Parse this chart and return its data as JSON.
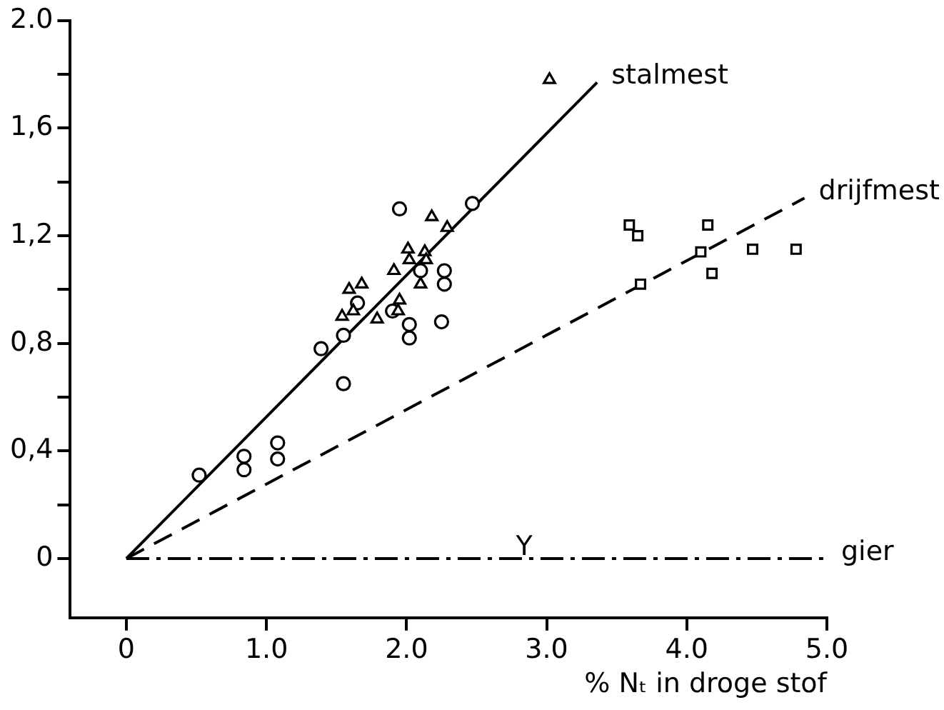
{
  "chart_data": {
    "type": "scatter",
    "xlabel": "% Nₜ in droge stof",
    "xlim": [
      -0.4,
      5.0
    ],
    "ylim": [
      -0.22,
      2.0
    ],
    "xticks": [
      0,
      {
        "value": 1,
        "label": "1.0"
      },
      {
        "value": 2,
        "label": "2.0"
      },
      {
        "value": 3,
        "label": "3.0"
      },
      {
        "value": 4,
        "label": "4.0"
      },
      {
        "value": 5,
        "label": "5.0"
      }
    ],
    "yticks": [
      0,
      {
        "value": 0.2,
        "label": null
      },
      {
        "value": 0.4,
        "label": "0,4"
      },
      {
        "value": 0.6,
        "label": null
      },
      {
        "value": 0.8,
        "label": "0,8"
      },
      {
        "value": 1.0,
        "label": null
      },
      {
        "value": 1.2,
        "label": "1,2"
      },
      {
        "value": 1.4,
        "label": null
      },
      {
        "value": 1.6,
        "label": "1,6"
      },
      {
        "value": 1.8,
        "label": null
      },
      {
        "value": 2.0,
        "label": "2.0"
      }
    ],
    "grid": false,
    "legend": false,
    "series": [
      {
        "marker": "circle",
        "color": "#000000",
        "x": [
          0.52,
          0.84,
          0.84,
          1.08,
          1.08,
          1.39,
          1.55,
          1.55
        ],
        "values": [
          0.31,
          0.38,
          0.33,
          0.43,
          0.37,
          0.78,
          0.83,
          0.65
        ]
      },
      {
        "marker": "triangle",
        "color": "#000000",
        "x": [
          3.02,
          1.59,
          1.68,
          1.54,
          1.62,
          1.79,
          1.91,
          1.95,
          1.94,
          2.01,
          2.02,
          2.13,
          2.14,
          2.1,
          2.18,
          2.29
        ],
        "values": [
          1.78,
          1.0,
          1.02,
          0.9,
          0.92,
          0.89,
          1.07,
          0.96,
          0.92,
          1.15,
          1.11,
          1.14,
          1.11,
          1.02,
          1.27,
          1.23
        ]
      },
      {
        "marker": "circle",
        "color": "#000000",
        "x": [
          1.95,
          2.47,
          1.65,
          1.9,
          2.02,
          2.02,
          2.1,
          2.27,
          2.27,
          2.25
        ],
        "values": [
          1.3,
          1.32,
          0.95,
          0.92,
          0.87,
          0.82,
          1.07,
          1.07,
          1.02,
          0.88
        ]
      },
      {
        "marker": "square",
        "color": "#000000",
        "x": [
          3.59,
          3.65,
          3.67,
          4.15,
          4.1,
          4.18,
          4.47,
          4.78
        ],
        "values": [
          1.24,
          1.2,
          1.02,
          1.24,
          1.14,
          1.06,
          1.15,
          1.15
        ]
      },
      {
        "type": "line",
        "name": "stalmest",
        "line_style": "solid",
        "color": "#000000",
        "x": [
          0,
          3.36
        ],
        "values": [
          0,
          1.77
        ]
      },
      {
        "type": "line",
        "name": "drijfmest",
        "line_style": "dashed",
        "color": "#000000",
        "x": [
          0,
          4.84
        ],
        "values": [
          0,
          1.34
        ]
      },
      {
        "type": "line",
        "name": "gier",
        "line_style": "dashdot",
        "color": "#000000",
        "x": [
          0,
          5.0
        ],
        "values": [
          0,
          0
        ]
      }
    ],
    "annotations": [
      {
        "text": "Y",
        "x": 2.84,
        "y": 0
      }
    ]
  }
}
